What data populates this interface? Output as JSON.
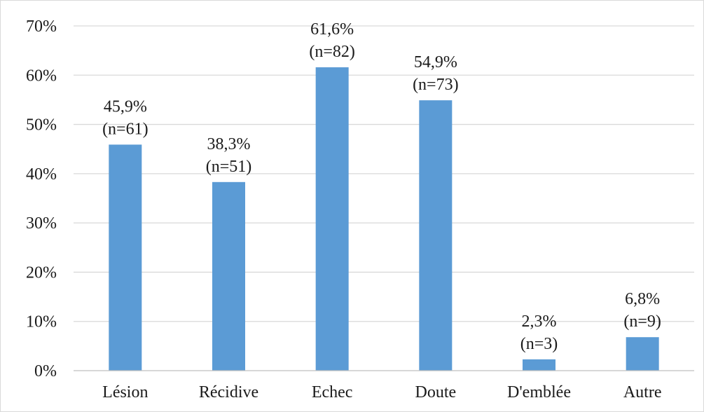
{
  "chart_data": {
    "type": "bar",
    "title": "",
    "xlabel": "",
    "ylabel": "",
    "categories": [
      "Lésion",
      "Récidive",
      "Echec",
      "Doute",
      "D'emblée",
      "Autre"
    ],
    "values": [
      45.9,
      38.3,
      61.6,
      54.9,
      2.3,
      6.8
    ],
    "value_labels": [
      "45,9%",
      "38,3%",
      "61,6%",
      "54,9%",
      "2,3%",
      "6,8%"
    ],
    "count_labels": [
      "(n=61)",
      "(n=51)",
      "(n=82)",
      "(n=73)",
      "(n=3)",
      "(n=9)"
    ],
    "ylim": [
      0,
      70
    ],
    "y_ticks": [
      0,
      10,
      20,
      30,
      40,
      50,
      60,
      70
    ],
    "y_tick_labels": [
      "0%",
      "10%",
      "20%",
      "30%",
      "40%",
      "50%",
      "60%",
      "70%"
    ],
    "grid": true,
    "legend": "none",
    "bar_color": "#5b9bd5"
  }
}
